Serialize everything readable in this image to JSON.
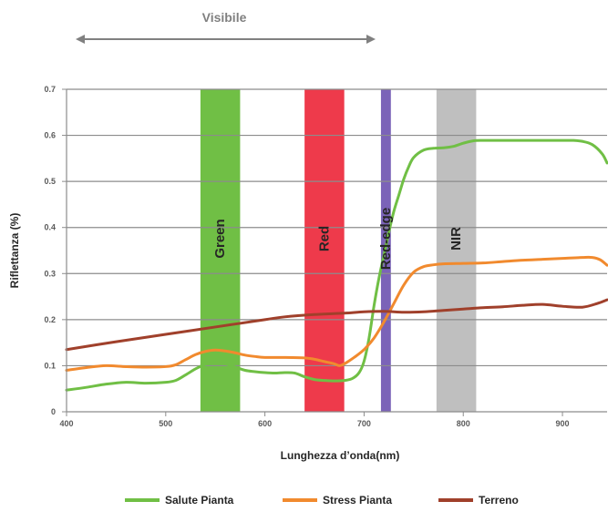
{
  "chart_data": {
    "type": "line",
    "xlabel": "Lunghezza d’onda(nm)",
    "ylabel": "Riflettanza (%)",
    "xlim": [
      400,
      945
    ],
    "ylim": [
      0,
      0.7
    ],
    "x_ticks": [
      400,
      500,
      600,
      700,
      800,
      900
    ],
    "x_tick_labels": [
      "400",
      "500",
      "600",
      "700",
      "800",
      "900"
    ],
    "y_ticks": [
      0,
      0.1,
      0.2,
      0.3,
      0.4,
      0.5,
      0.6,
      0.7
    ],
    "y_tick_labels": [
      "0",
      "0.1",
      "0.2",
      "0.3",
      "0.4",
      "0.5",
      "0.6",
      "0.7"
    ],
    "grid": "horizontal",
    "legend_position": "bottom",
    "visible_range": {
      "label": "Visibile",
      "from": 400,
      "to": 700
    },
    "bands": [
      {
        "label": "Green",
        "from": 535,
        "to": 575,
        "color": "#70BF45"
      },
      {
        "label": "Red",
        "from": 640,
        "to": 680,
        "color": "#EE3A4B"
      },
      {
        "label": "Red-edge",
        "from": 717,
        "to": 727,
        "color": "#7B63B8"
      },
      {
        "label": "NIR",
        "from": 773,
        "to": 813,
        "color": "#BFBFBF"
      }
    ],
    "series": [
      {
        "name": "Salute Pianta",
        "color": "#70BF45",
        "points": [
          [
            400,
            0.047
          ],
          [
            420,
            0.053
          ],
          [
            440,
            0.06
          ],
          [
            460,
            0.064
          ],
          [
            480,
            0.062
          ],
          [
            500,
            0.064
          ],
          [
            510,
            0.068
          ],
          [
            520,
            0.08
          ],
          [
            530,
            0.093
          ],
          [
            540,
            0.103
          ],
          [
            550,
            0.106
          ],
          [
            560,
            0.104
          ],
          [
            570,
            0.097
          ],
          [
            580,
            0.09
          ],
          [
            590,
            0.087
          ],
          [
            600,
            0.085
          ],
          [
            610,
            0.084
          ],
          [
            620,
            0.085
          ],
          [
            630,
            0.084
          ],
          [
            640,
            0.076
          ],
          [
            650,
            0.07
          ],
          [
            660,
            0.068
          ],
          [
            670,
            0.067
          ],
          [
            680,
            0.068
          ],
          [
            688,
            0.072
          ],
          [
            695,
            0.085
          ],
          [
            700,
            0.11
          ],
          [
            705,
            0.16
          ],
          [
            710,
            0.23
          ],
          [
            715,
            0.29
          ],
          [
            720,
            0.34
          ],
          [
            725,
            0.39
          ],
          [
            730,
            0.435
          ],
          [
            735,
            0.47
          ],
          [
            740,
            0.505
          ],
          [
            745,
            0.532
          ],
          [
            750,
            0.552
          ],
          [
            760,
            0.568
          ],
          [
            770,
            0.572
          ],
          [
            780,
            0.573
          ],
          [
            790,
            0.576
          ],
          [
            800,
            0.583
          ],
          [
            810,
            0.588
          ],
          [
            820,
            0.589
          ],
          [
            850,
            0.589
          ],
          [
            880,
            0.589
          ],
          [
            900,
            0.589
          ],
          [
            910,
            0.589
          ],
          [
            920,
            0.587
          ],
          [
            930,
            0.58
          ],
          [
            940,
            0.56
          ],
          [
            945,
            0.54
          ]
        ]
      },
      {
        "name": "Stress Pianta",
        "color": "#F18A2E",
        "points": [
          [
            400,
            0.09
          ],
          [
            420,
            0.096
          ],
          [
            440,
            0.1
          ],
          [
            460,
            0.098
          ],
          [
            480,
            0.097
          ],
          [
            500,
            0.098
          ],
          [
            510,
            0.102
          ],
          [
            520,
            0.113
          ],
          [
            530,
            0.124
          ],
          [
            540,
            0.131
          ],
          [
            550,
            0.134
          ],
          [
            560,
            0.132
          ],
          [
            570,
            0.128
          ],
          [
            580,
            0.123
          ],
          [
            590,
            0.12
          ],
          [
            600,
            0.118
          ],
          [
            620,
            0.118
          ],
          [
            640,
            0.117
          ],
          [
            650,
            0.114
          ],
          [
            660,
            0.109
          ],
          [
            670,
            0.104
          ],
          [
            675,
            0.1
          ],
          [
            680,
            0.104
          ],
          [
            690,
            0.118
          ],
          [
            700,
            0.135
          ],
          [
            710,
            0.16
          ],
          [
            720,
            0.195
          ],
          [
            730,
            0.235
          ],
          [
            740,
            0.275
          ],
          [
            750,
            0.303
          ],
          [
            760,
            0.315
          ],
          [
            770,
            0.319
          ],
          [
            780,
            0.321
          ],
          [
            800,
            0.322
          ],
          [
            820,
            0.323
          ],
          [
            840,
            0.326
          ],
          [
            860,
            0.329
          ],
          [
            880,
            0.331
          ],
          [
            900,
            0.333
          ],
          [
            920,
            0.335
          ],
          [
            930,
            0.335
          ],
          [
            938,
            0.33
          ],
          [
            945,
            0.318
          ]
        ]
      },
      {
        "name": "Terreno",
        "color": "#A0402B",
        "points": [
          [
            400,
            0.135
          ],
          [
            450,
            0.152
          ],
          [
            500,
            0.168
          ],
          [
            550,
            0.184
          ],
          [
            600,
            0.2
          ],
          [
            620,
            0.206
          ],
          [
            650,
            0.211
          ],
          [
            680,
            0.214
          ],
          [
            700,
            0.217
          ],
          [
            720,
            0.218
          ],
          [
            740,
            0.216
          ],
          [
            760,
            0.217
          ],
          [
            780,
            0.22
          ],
          [
            800,
            0.223
          ],
          [
            820,
            0.226
          ],
          [
            840,
            0.228
          ],
          [
            860,
            0.231
          ],
          [
            880,
            0.233
          ],
          [
            900,
            0.229
          ],
          [
            920,
            0.227
          ],
          [
            935,
            0.235
          ],
          [
            945,
            0.243
          ]
        ]
      }
    ]
  }
}
